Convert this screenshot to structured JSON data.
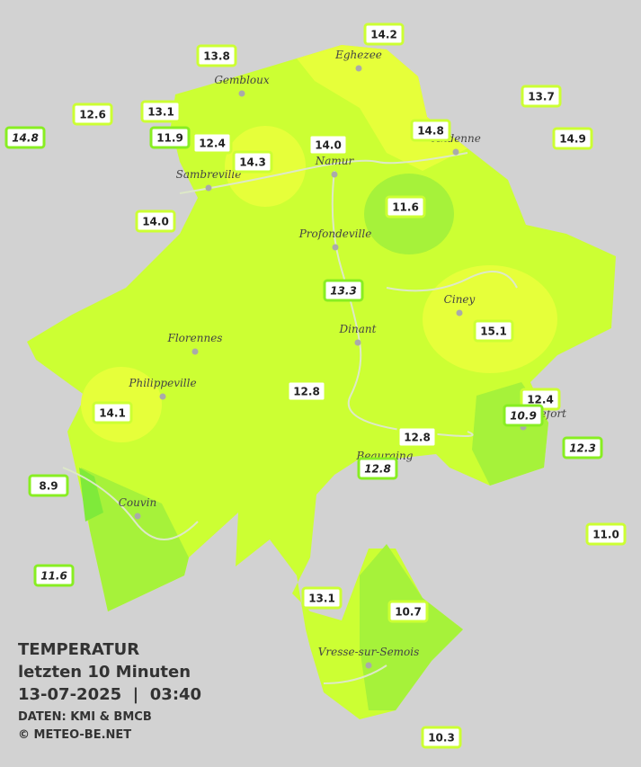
{
  "header": {
    "title": "TEMPERATUR",
    "subtitle": "letzten 10 Minuten",
    "datetime": "13-07-2025  |  03:40",
    "source": "DATEN: KMI & BMCB",
    "copyright": "© METEO-BE.NET"
  },
  "cities": [
    "Eghezee",
    "Gembloux",
    "Andenne",
    "Namur",
    "Sambreville",
    "Profondeville",
    "Ciney",
    "Dinant",
    "Florennes",
    "Philippeville",
    "Rochefort",
    "Beauraing",
    "Couvin",
    "Vresse-sur-Semois"
  ],
  "stations": [
    "14.2",
    "13.8",
    "13.7",
    "12.6",
    "13.1",
    "14.8",
    "11.9",
    "12.4",
    "14.3",
    "14.0",
    "14.8",
    "14.9",
    "14.0",
    "11.6",
    "13.3",
    "15.1",
    "12.8",
    "12.4",
    "10.9",
    "14.1",
    "12.8",
    "12.8",
    "12.3",
    "8.9",
    "11.0",
    "11.6",
    "13.1",
    "10.7",
    "10.3"
  ]
}
